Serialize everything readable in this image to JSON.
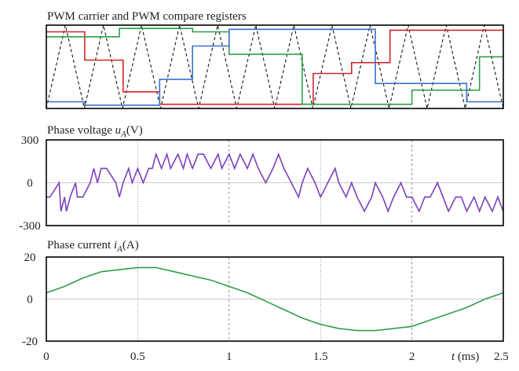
{
  "chart_data": [
    {
      "type": "line",
      "title": "PWM carrier and PWM compare registers",
      "xlim": [
        0,
        2.5
      ],
      "ylim": [
        0,
        1
      ],
      "grid": false,
      "carrier": {
        "name": "",
        "color": "#000000",
        "style": "dashed",
        "periods": 12,
        "phase": "valley at t=0"
      },
      "series": [
        {
          "color": "#d0242a",
          "x": [
            0,
            0.21,
            0.21,
            0.42,
            0.42,
            0.62,
            0.62,
            1.46,
            1.46,
            1.67,
            1.67,
            1.88,
            1.88,
            2.5
          ],
          "y": [
            0.92,
            0.92,
            0.58,
            0.58,
            0.2,
            0.2,
            0.05,
            0.05,
            0.42,
            0.42,
            0.55,
            0.55,
            0.94,
            0.94
          ]
        },
        {
          "color": "#2e9e4a",
          "x": [
            0,
            0.4,
            0.4,
            0.8,
            0.8,
            1.0,
            1.0,
            1.4,
            1.4,
            2.0,
            2.0,
            2.37,
            2.37,
            2.5
          ],
          "y": [
            0.86,
            0.86,
            0.96,
            0.96,
            0.92,
            0.92,
            0.65,
            0.65,
            0.05,
            0.05,
            0.22,
            0.22,
            0.62,
            0.62
          ]
        },
        {
          "color": "#3a6fd0",
          "x": [
            0,
            0.21,
            0.21,
            0.62,
            0.62,
            0.8,
            0.8,
            1.0,
            1.0,
            1.8,
            1.8,
            2.3,
            2.3,
            2.5
          ],
          "y": [
            0.08,
            0.08,
            0.04,
            0.04,
            0.35,
            0.35,
            0.75,
            0.75,
            0.95,
            0.95,
            0.3,
            0.3,
            0.08,
            0.08
          ]
        }
      ]
    },
    {
      "type": "line",
      "title": "Phase voltage u_A(V)",
      "title_parts": {
        "pre": "Phase voltage ",
        "sym": "u",
        "sub": "A",
        "post": "(V)"
      },
      "xlim": [
        0,
        2.5
      ],
      "ylim": [
        -300,
        300
      ],
      "yticks": [
        "300",
        "0",
        "-300"
      ],
      "ytick_values": [
        300,
        0,
        -300
      ],
      "grid": true,
      "series": [
        {
          "color": "#7b3fbf",
          "x": [
            0,
            0.02,
            0.07,
            0.08,
            0.1,
            0.11,
            0.13,
            0.16,
            0.17,
            0.2,
            0.24,
            0.26,
            0.28,
            0.3,
            0.33,
            0.38,
            0.4,
            0.42,
            0.45,
            0.47,
            0.5,
            0.53,
            0.56,
            0.58,
            0.6,
            0.63,
            0.66,
            0.68,
            0.72,
            0.75,
            0.77,
            0.8,
            0.83,
            0.86,
            0.9,
            0.94,
            0.96,
            1.0,
            1.03,
            1.06,
            1.1,
            1.13,
            1.16,
            1.2,
            1.24,
            1.27,
            1.3,
            1.34,
            1.38,
            1.4,
            1.43,
            1.47,
            1.5,
            1.54,
            1.58,
            1.6,
            1.64,
            1.67,
            1.7,
            1.74,
            1.78,
            1.8,
            1.84,
            1.87,
            1.9,
            1.94,
            1.97,
            2.0,
            2.04,
            2.07,
            2.1,
            2.14,
            2.17,
            2.2,
            2.24,
            2.27,
            2.3,
            2.34,
            2.37,
            2.4,
            2.44,
            2.47,
            2.5
          ],
          "y": [
            -100,
            -100,
            0,
            -200,
            -100,
            -200,
            -100,
            0,
            -100,
            -100,
            0,
            100,
            0,
            100,
            100,
            0,
            -100,
            0,
            100,
            0,
            100,
            0,
            100,
            100,
            200,
            100,
            200,
            100,
            200,
            100,
            200,
            100,
            200,
            200,
            100,
            200,
            100,
            200,
            100,
            200,
            100,
            200,
            100,
            0,
            100,
            200,
            100,
            0,
            -100,
            0,
            100,
            0,
            -100,
            0,
            100,
            0,
            -100,
            0,
            -100,
            -200,
            -100,
            0,
            -100,
            -200,
            -100,
            0,
            -100,
            -100,
            -200,
            -100,
            -100,
            0,
            -100,
            -200,
            -100,
            -100,
            -200,
            -100,
            -200,
            -100,
            -200,
            -100,
            -200
          ]
        }
      ]
    },
    {
      "type": "line",
      "title": "Phase current i_A(A)",
      "title_parts": {
        "pre": "Phase current ",
        "sym": "i",
        "sub": "A",
        "post": "(A)"
      },
      "xlim": [
        0,
        2.5
      ],
      "ylim": [
        -20,
        20
      ],
      "yticks": [
        "20",
        "0",
        "-20"
      ],
      "ytick_values": [
        20,
        0,
        -20
      ],
      "xticks": [
        "0",
        "0.5",
        "1",
        "1.5",
        "2",
        "2.5"
      ],
      "xtick_values": [
        0,
        0.5,
        1,
        1.5,
        2,
        2.5
      ],
      "xlabel": "t (ms)",
      "xlabel_parts": {
        "sym": "t",
        "post": " (ms)"
      },
      "grid": true,
      "series": [
        {
          "color": "#2e9e4a",
          "x": [
            0,
            0.1,
            0.2,
            0.3,
            0.4,
            0.5,
            0.6,
            0.7,
            0.8,
            0.9,
            1.0,
            1.1,
            1.2,
            1.3,
            1.4,
            1.5,
            1.6,
            1.7,
            1.8,
            1.9,
            2.0,
            2.1,
            2.2,
            2.3,
            2.4,
            2.5
          ],
          "y": [
            3,
            6,
            10,
            13,
            14,
            15,
            15,
            13,
            11,
            9,
            6,
            3,
            -1,
            -5,
            -9,
            -12,
            -14,
            -15,
            -15,
            -14,
            -13,
            -10,
            -7,
            -4,
            0,
            3
          ]
        }
      ]
    }
  ]
}
